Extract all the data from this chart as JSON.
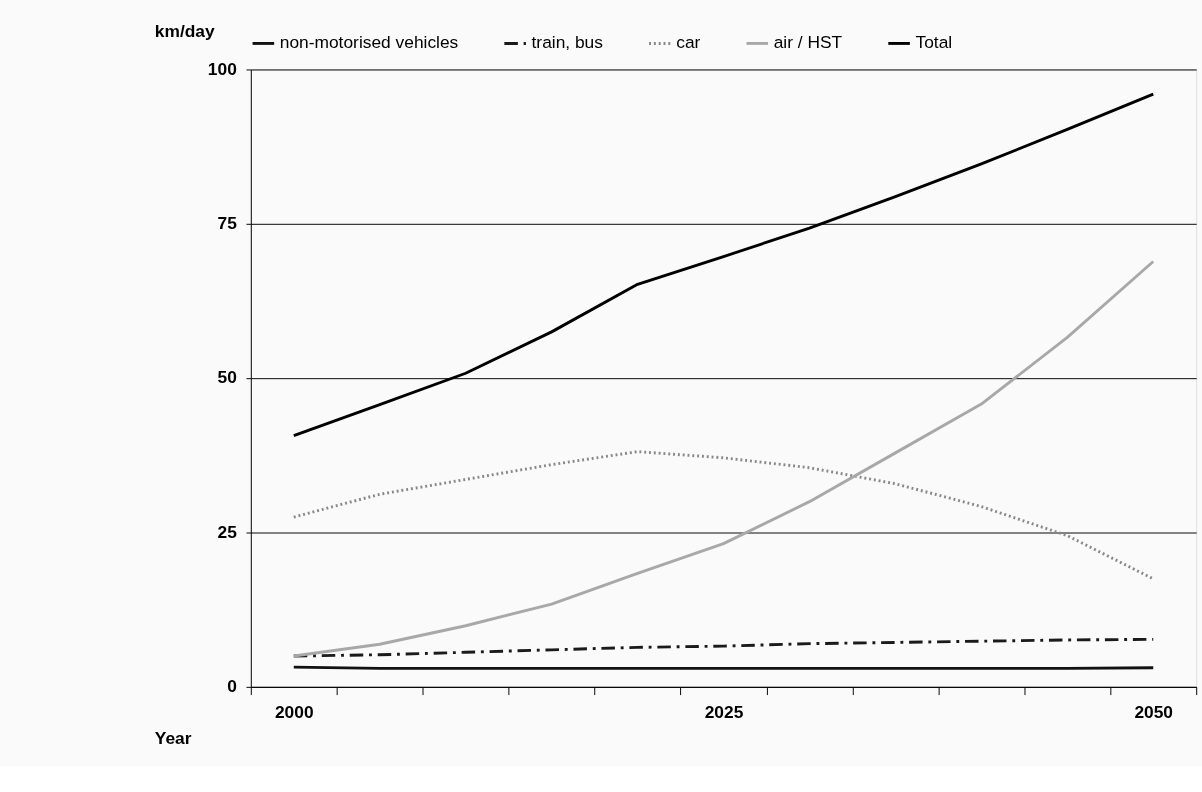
{
  "chart_data": {
    "type": "line",
    "xlabel": "Year",
    "ylabel": "km/day",
    "categories": [
      "2000",
      null,
      null,
      null,
      null,
      "2025",
      null,
      null,
      null,
      null,
      "2050"
    ],
    "series": [
      {
        "name": "non-motorised vehicles",
        "color": "#111111",
        "line_style": "solid",
        "values": [
          3.2,
          3,
          3,
          3,
          3,
          3,
          3,
          3,
          3,
          3,
          3.1
        ]
      },
      {
        "name": "train, bus",
        "color": "#1a1a1a",
        "line_style": "dashed",
        "values": [
          5,
          5.2,
          5.6,
          6,
          6.4,
          6.6,
          7,
          7.2,
          7.4,
          7.6,
          7.7
        ]
      },
      {
        "name": "car",
        "color": "#888888",
        "line_style": "dotted",
        "values": [
          27.5,
          31.2,
          33.6,
          36,
          38.1,
          37.1,
          35.5,
          32.9,
          29.2,
          24.5,
          17.5
        ]
      },
      {
        "name": "air / HST",
        "color": "#a8a8a8",
        "line_style": "solid",
        "values": [
          5,
          6.9,
          9.9,
          13.4,
          18.4,
          23.2,
          30,
          37.9,
          45.8,
          56.6,
          68.9
        ]
      },
      {
        "name": "Total",
        "color": "#000000",
        "line_style": "solid",
        "values": [
          40.7,
          45.7,
          50.8,
          57.5,
          65.2,
          69.7,
          74.3,
          79.4,
          84.7,
          90.3,
          96
        ]
      }
    ],
    "ylim": [
      0,
      100
    ],
    "yticks": [
      0,
      25,
      50,
      75,
      100
    ],
    "grid": "y",
    "legend": "top",
    "marker": "none"
  }
}
